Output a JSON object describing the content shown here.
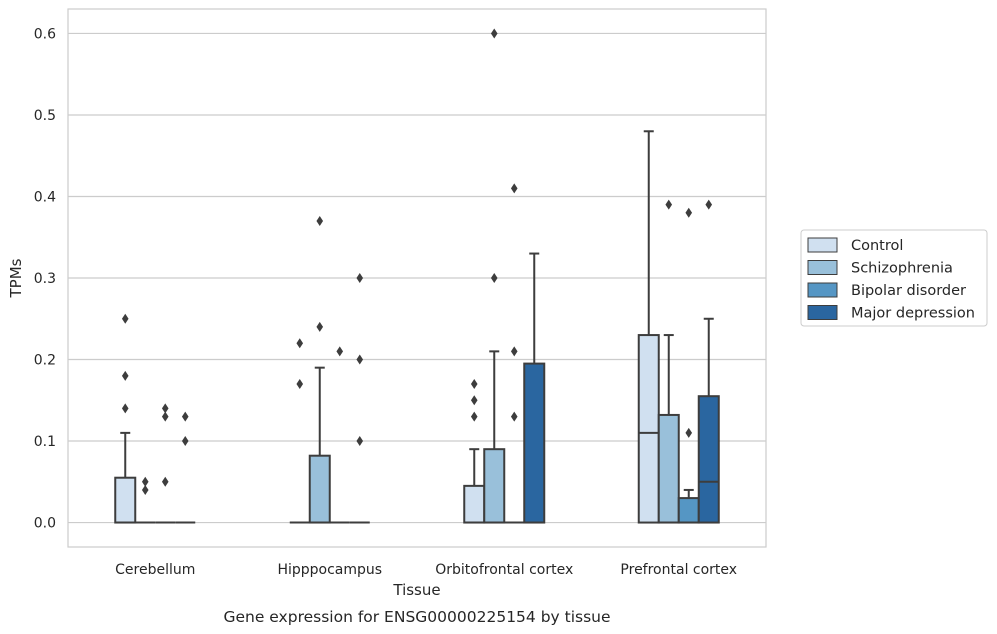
{
  "chart_data": {
    "type": "box",
    "xlabel": "Tissue",
    "ylabel": "TPMs",
    "caption": "Gene expression for ENSG00000225154 by tissue",
    "ylim": [
      -0.03,
      0.63
    ],
    "yticks": [
      "0.0",
      "0.1",
      "0.2",
      "0.3",
      "0.4",
      "0.5",
      "0.6"
    ],
    "yticks_values": [
      0.0,
      0.1,
      0.2,
      0.3,
      0.4,
      0.5,
      0.6
    ],
    "grid": "horizontal",
    "legend_position": "right",
    "categories": [
      "Cerebellum",
      "Hipppocampus",
      "Orbitofrontal cortex",
      "Prefrontal cortex"
    ],
    "series": [
      {
        "name": "Control",
        "color": "#d0e0f0",
        "boxes": [
          {
            "q1": 0.0,
            "median": 0.0,
            "q3": 0.055,
            "whislo": 0.0,
            "whishi": 0.11,
            "fliers": [
              0.14,
              0.18,
              0.25
            ]
          },
          {
            "q1": 0.0,
            "median": 0.0,
            "q3": 0.0,
            "whislo": 0.0,
            "whishi": 0.0,
            "fliers": [
              0.17,
              0.22
            ]
          },
          {
            "q1": 0.0,
            "median": 0.0,
            "q3": 0.045,
            "whislo": 0.0,
            "whishi": 0.09,
            "fliers": [
              0.13,
              0.15,
              0.17
            ]
          },
          {
            "q1": 0.0,
            "median": 0.11,
            "q3": 0.23,
            "whislo": 0.0,
            "whishi": 0.48,
            "fliers": []
          }
        ]
      },
      {
        "name": "Schizophrenia",
        "color": "#99c0da",
        "boxes": [
          {
            "q1": 0.0,
            "median": 0.0,
            "q3": 0.0,
            "whislo": 0.0,
            "whishi": 0.0,
            "fliers": [
              0.04,
              0.05
            ]
          },
          {
            "q1": 0.0,
            "median": 0.0,
            "q3": 0.082,
            "whislo": 0.0,
            "whishi": 0.19,
            "fliers": [
              0.24,
              0.37
            ]
          },
          {
            "q1": 0.0,
            "median": 0.0,
            "q3": 0.09,
            "whislo": 0.0,
            "whishi": 0.21,
            "fliers": [
              0.3,
              0.6
            ]
          },
          {
            "q1": 0.0,
            "median": 0.0,
            "q3": 0.132,
            "whislo": 0.0,
            "whishi": 0.23,
            "fliers": [
              0.39
            ]
          }
        ]
      },
      {
        "name": "Bipolar disorder",
        "color": "#5596c4",
        "boxes": [
          {
            "q1": 0.0,
            "median": 0.0,
            "q3": 0.0,
            "whislo": 0.0,
            "whishi": 0.0,
            "fliers": [
              0.05,
              0.13,
              0.14
            ]
          },
          {
            "q1": 0.0,
            "median": 0.0,
            "q3": 0.0,
            "whislo": 0.0,
            "whishi": 0.0,
            "fliers": [
              0.21
            ]
          },
          {
            "q1": 0.0,
            "median": 0.0,
            "q3": 0.0,
            "whislo": 0.0,
            "whishi": 0.0,
            "fliers": [
              0.13,
              0.21,
              0.41
            ]
          },
          {
            "q1": 0.0,
            "median": 0.0,
            "q3": 0.03,
            "whislo": 0.0,
            "whishi": 0.04,
            "fliers": [
              0.11,
              0.38
            ]
          }
        ]
      },
      {
        "name": "Major depression",
        "color": "#2a66a0",
        "boxes": [
          {
            "q1": 0.0,
            "median": 0.0,
            "q3": 0.0,
            "whislo": 0.0,
            "whishi": 0.0,
            "fliers": [
              0.1,
              0.13
            ]
          },
          {
            "q1": 0.0,
            "median": 0.0,
            "q3": 0.0,
            "whislo": 0.0,
            "whishi": 0.0,
            "fliers": [
              0.1,
              0.2,
              0.3
            ]
          },
          {
            "q1": 0.0,
            "median": 0.0,
            "q3": 0.195,
            "whislo": 0.0,
            "whishi": 0.33,
            "fliers": []
          },
          {
            "q1": 0.0,
            "median": 0.05,
            "q3": 0.155,
            "whislo": 0.0,
            "whishi": 0.25,
            "fliers": [
              0.39
            ]
          }
        ]
      }
    ]
  }
}
